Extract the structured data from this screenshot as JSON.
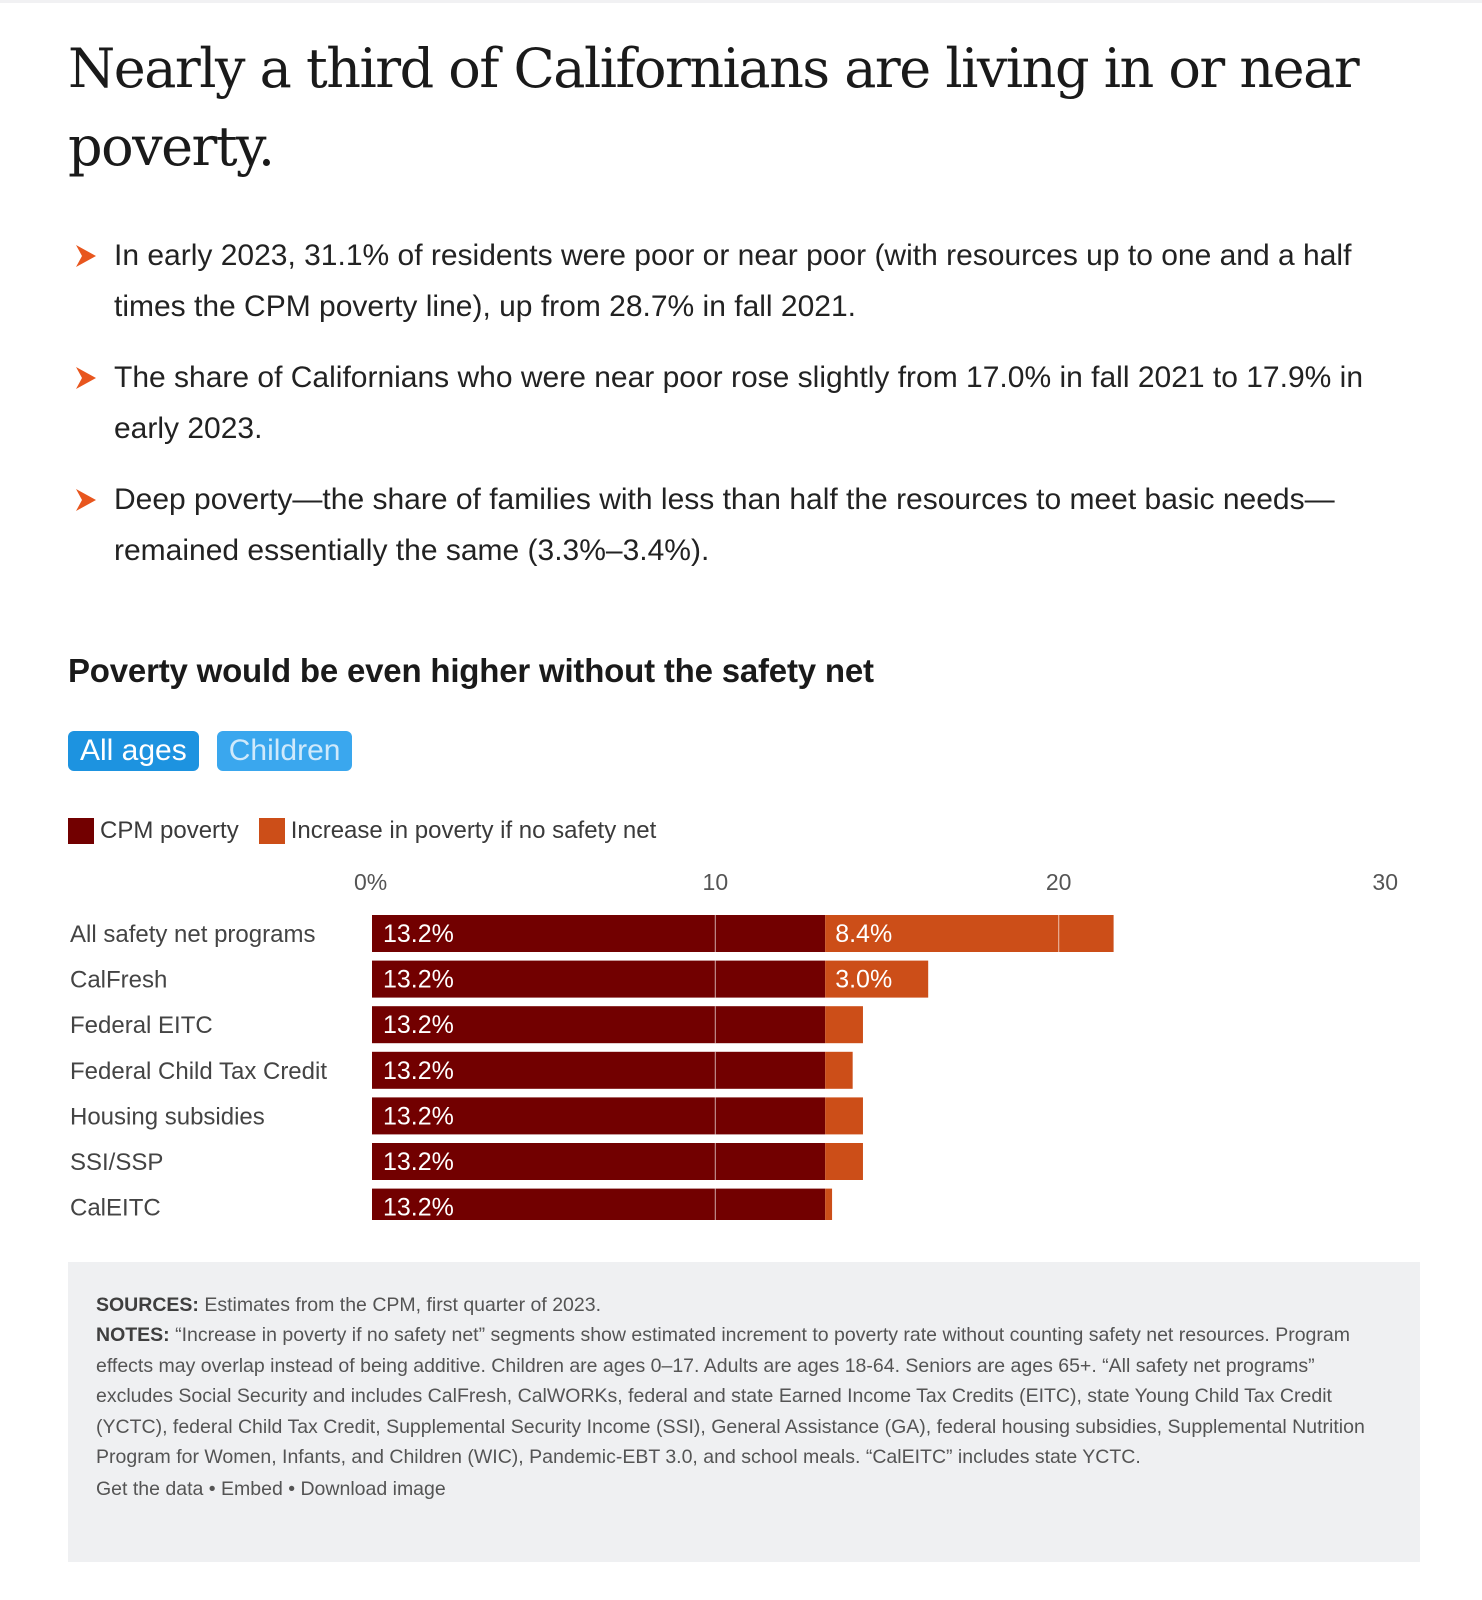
{
  "headline": "Nearly a third of Californians are living in or near poverty.",
  "bullets": [
    "In early 2023, 31.1% of residents were poor or near poor (with resources up to one and a half times the CPM poverty line), up from 28.7% in fall 2021.",
    "The share of Californians who were near poor rose slightly from 17.0% in fall 2021 to 17.9% in early 2023.",
    "Deep poverty—the share of families with less than half the resources to meet basic needs—remained essentially the same (3.3%–3.4%)."
  ],
  "tabs": {
    "all_ages": "All ages",
    "children": "Children"
  },
  "legend": {
    "cpm": "CPM poverty",
    "increase": "Increase in poverty if no safety net"
  },
  "colors": {
    "cpm": "#720000",
    "increase": "#cc4e18",
    "accent": "#e8561e",
    "tab_active": "#1d93e0",
    "tab_inactive": "#3aa7ee"
  },
  "chart_data": {
    "type": "bar",
    "orientation": "horizontal",
    "stacked": true,
    "title": "Poverty would be even higher without the safety net",
    "categories": [
      "All safety net programs",
      "CalFresh",
      "Federal EITC",
      "Federal Child Tax Credit",
      "Housing subsidies",
      "SSI/SSP",
      "CalEITC"
    ],
    "series": [
      {
        "name": "CPM poverty",
        "values": [
          13.2,
          13.2,
          13.2,
          13.2,
          13.2,
          13.2,
          13.2
        ],
        "labels": [
          "13.2%",
          "13.2%",
          "13.2%",
          "13.2%",
          "13.2%",
          "13.2%",
          "13.2%"
        ]
      },
      {
        "name": "Increase in poverty if no safety net",
        "values": [
          8.4,
          3.0,
          1.1,
          0.8,
          1.1,
          1.1,
          0.2
        ],
        "labels": [
          "8.4%",
          "3.0%",
          "",
          "",
          "",
          "",
          ""
        ]
      }
    ],
    "xticks": [
      "0%",
      "10",
      "20",
      "30"
    ],
    "xtick_values": [
      0,
      10,
      20,
      30
    ],
    "xlim": [
      0,
      30
    ],
    "gridlines": [
      10,
      20
    ]
  },
  "notes": {
    "sources_label": "SOURCES:",
    "sources_text": " Estimates from the CPM, first quarter of 2023.",
    "notes_label": "NOTES:",
    "notes_text": " “Increase in poverty if no safety net” segments show estimated increment to poverty rate without counting safety net resources. Program effects may overlap instead of being additive. Children are ages 0–17. Adults are ages 18-64. Seniors are ages 65+. “All safety net programs” excludes Social Security and includes CalFresh, CalWORKs, federal and state Earned Income Tax Credits (EITC), state Young Child Tax Credit (YCTC), federal Child Tax Credit, Supplemental Security Income (SSI), General Assistance (GA), federal housing subsidies, Supplemental Nutrition Program for Women, Infants, and Children (WIC), Pandemic-EBT 3.0, and school meals. “CalEITC” includes state YCTC.",
    "links": [
      "Get the data",
      "Embed",
      "Download image"
    ],
    "separator": " • "
  }
}
